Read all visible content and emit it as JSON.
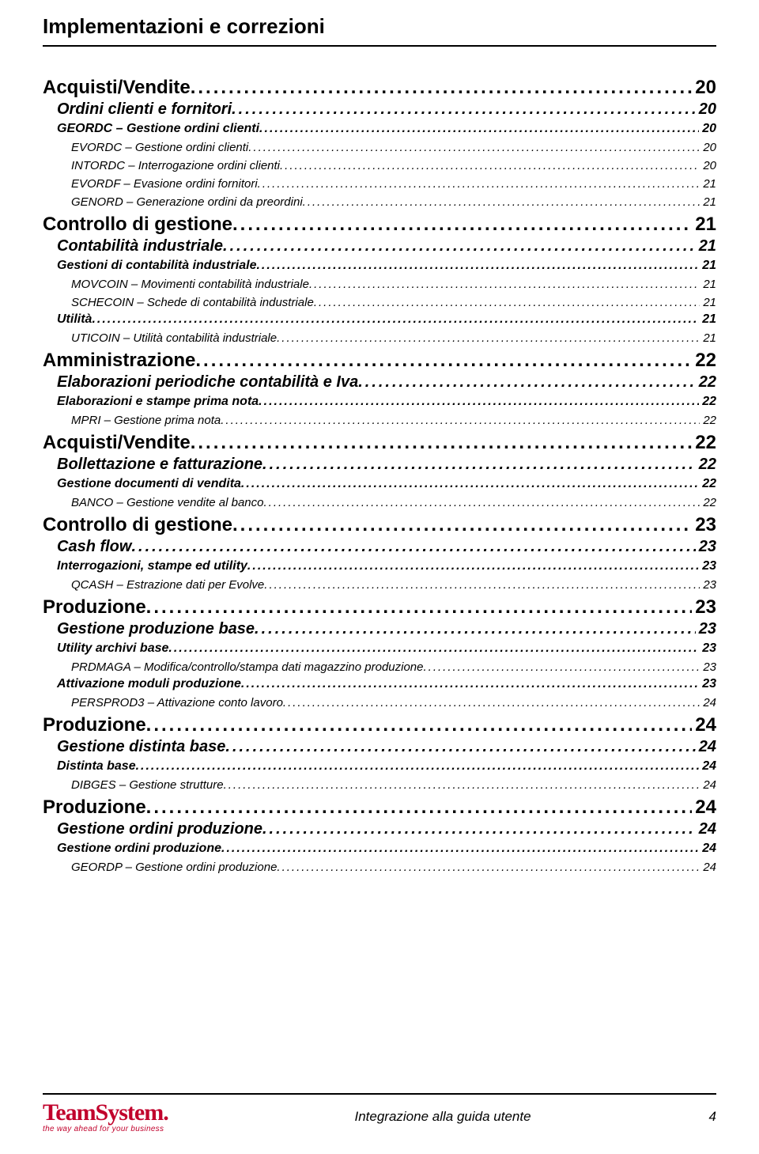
{
  "header": {
    "title": "Implementazioni e correzioni"
  },
  "toc": [
    {
      "level": 1,
      "label": "Acquisti/Vendite",
      "page": "20"
    },
    {
      "level": 2,
      "label": "Ordini clienti e fornitori",
      "page": "20"
    },
    {
      "level": 3,
      "label": "GEORDC – Gestione ordini clienti",
      "page": "20"
    },
    {
      "level": 4,
      "label": "EVORDC – Gestione ordini clienti",
      "page": "20"
    },
    {
      "level": 4,
      "label": "INTORDC – Interrogazione ordini clienti",
      "page": "20"
    },
    {
      "level": 4,
      "label": "EVORDF – Evasione ordini fornitori",
      "page": "21"
    },
    {
      "level": 4,
      "label": "GENORD – Generazione ordini da preordini",
      "page": "21"
    },
    {
      "level": 1,
      "label": "Controllo di gestione",
      "page": "21"
    },
    {
      "level": 2,
      "label": "Contabilità industriale",
      "page": "21"
    },
    {
      "level": 3,
      "label": "Gestioni di contabilità industriale",
      "page": "21"
    },
    {
      "level": 4,
      "label": "MOVCOIN – Movimenti contabilità industriale",
      "page": "21"
    },
    {
      "level": 4,
      "label": "SCHECOIN – Schede di contabilità industriale",
      "page": "21"
    },
    {
      "level": 3,
      "label": "Utilità",
      "page": "21"
    },
    {
      "level": 4,
      "label": "UTICOIN – Utilità contabilità industriale",
      "page": "21"
    },
    {
      "level": 1,
      "label": "Amministrazione",
      "page": "22"
    },
    {
      "level": 2,
      "label": "Elaborazioni periodiche contabilità e Iva",
      "page": "22"
    },
    {
      "level": 3,
      "label": "Elaborazioni e stampe prima nota",
      "page": "22"
    },
    {
      "level": 4,
      "label": "MPRI – Gestione prima nota",
      "page": "22"
    },
    {
      "level": 1,
      "label": "Acquisti/Vendite",
      "page": "22"
    },
    {
      "level": 2,
      "label": "Bollettazione e fatturazione",
      "page": "22"
    },
    {
      "level": 3,
      "label": "Gestione documenti di vendita",
      "page": "22"
    },
    {
      "level": 4,
      "label": "BANCO – Gestione vendite al banco",
      "page": "22"
    },
    {
      "level": 1,
      "label": "Controllo di gestione",
      "page": "23"
    },
    {
      "level": 2,
      "label": "Cash flow",
      "page": "23"
    },
    {
      "level": 3,
      "label": "Interrogazioni, stampe ed utility",
      "page": "23"
    },
    {
      "level": 4,
      "label": "QCASH – Estrazione dati per Evolve",
      "page": "23"
    },
    {
      "level": 1,
      "label": "Produzione",
      "page": "23"
    },
    {
      "level": 2,
      "label": "Gestione produzione base",
      "page": "23"
    },
    {
      "level": 3,
      "label": "Utility archivi base",
      "page": "23"
    },
    {
      "level": 4,
      "label": "PRDMAGA – Modifica/controllo/stampa dati magazzino produzione",
      "page": "23"
    },
    {
      "level": 3,
      "label": "Attivazione moduli produzione",
      "page": "23"
    },
    {
      "level": 4,
      "label": "PERSPROD3 – Attivazione conto lavoro",
      "page": "24"
    },
    {
      "level": 1,
      "label": "Produzione",
      "page": "24"
    },
    {
      "level": 2,
      "label": "Gestione distinta base",
      "page": "24"
    },
    {
      "level": 3,
      "label": "Distinta base",
      "page": "24"
    },
    {
      "level": 4,
      "label": "DIBGES – Gestione strutture",
      "page": "24"
    },
    {
      "level": 1,
      "label": "Produzione",
      "page": "24"
    },
    {
      "level": 2,
      "label": "Gestione ordini produzione",
      "page": "24"
    },
    {
      "level": 3,
      "label": "Gestione ordini produzione",
      "page": "24"
    },
    {
      "level": 4,
      "label": "GEORDP – Gestione ordini produzione",
      "page": "24"
    }
  ],
  "footer": {
    "brand": "TeamSystem",
    "tagline": "the way ahead for your business",
    "center": "Integrazione alla guida utente",
    "page": "4",
    "brand_color": "#c1022c"
  }
}
